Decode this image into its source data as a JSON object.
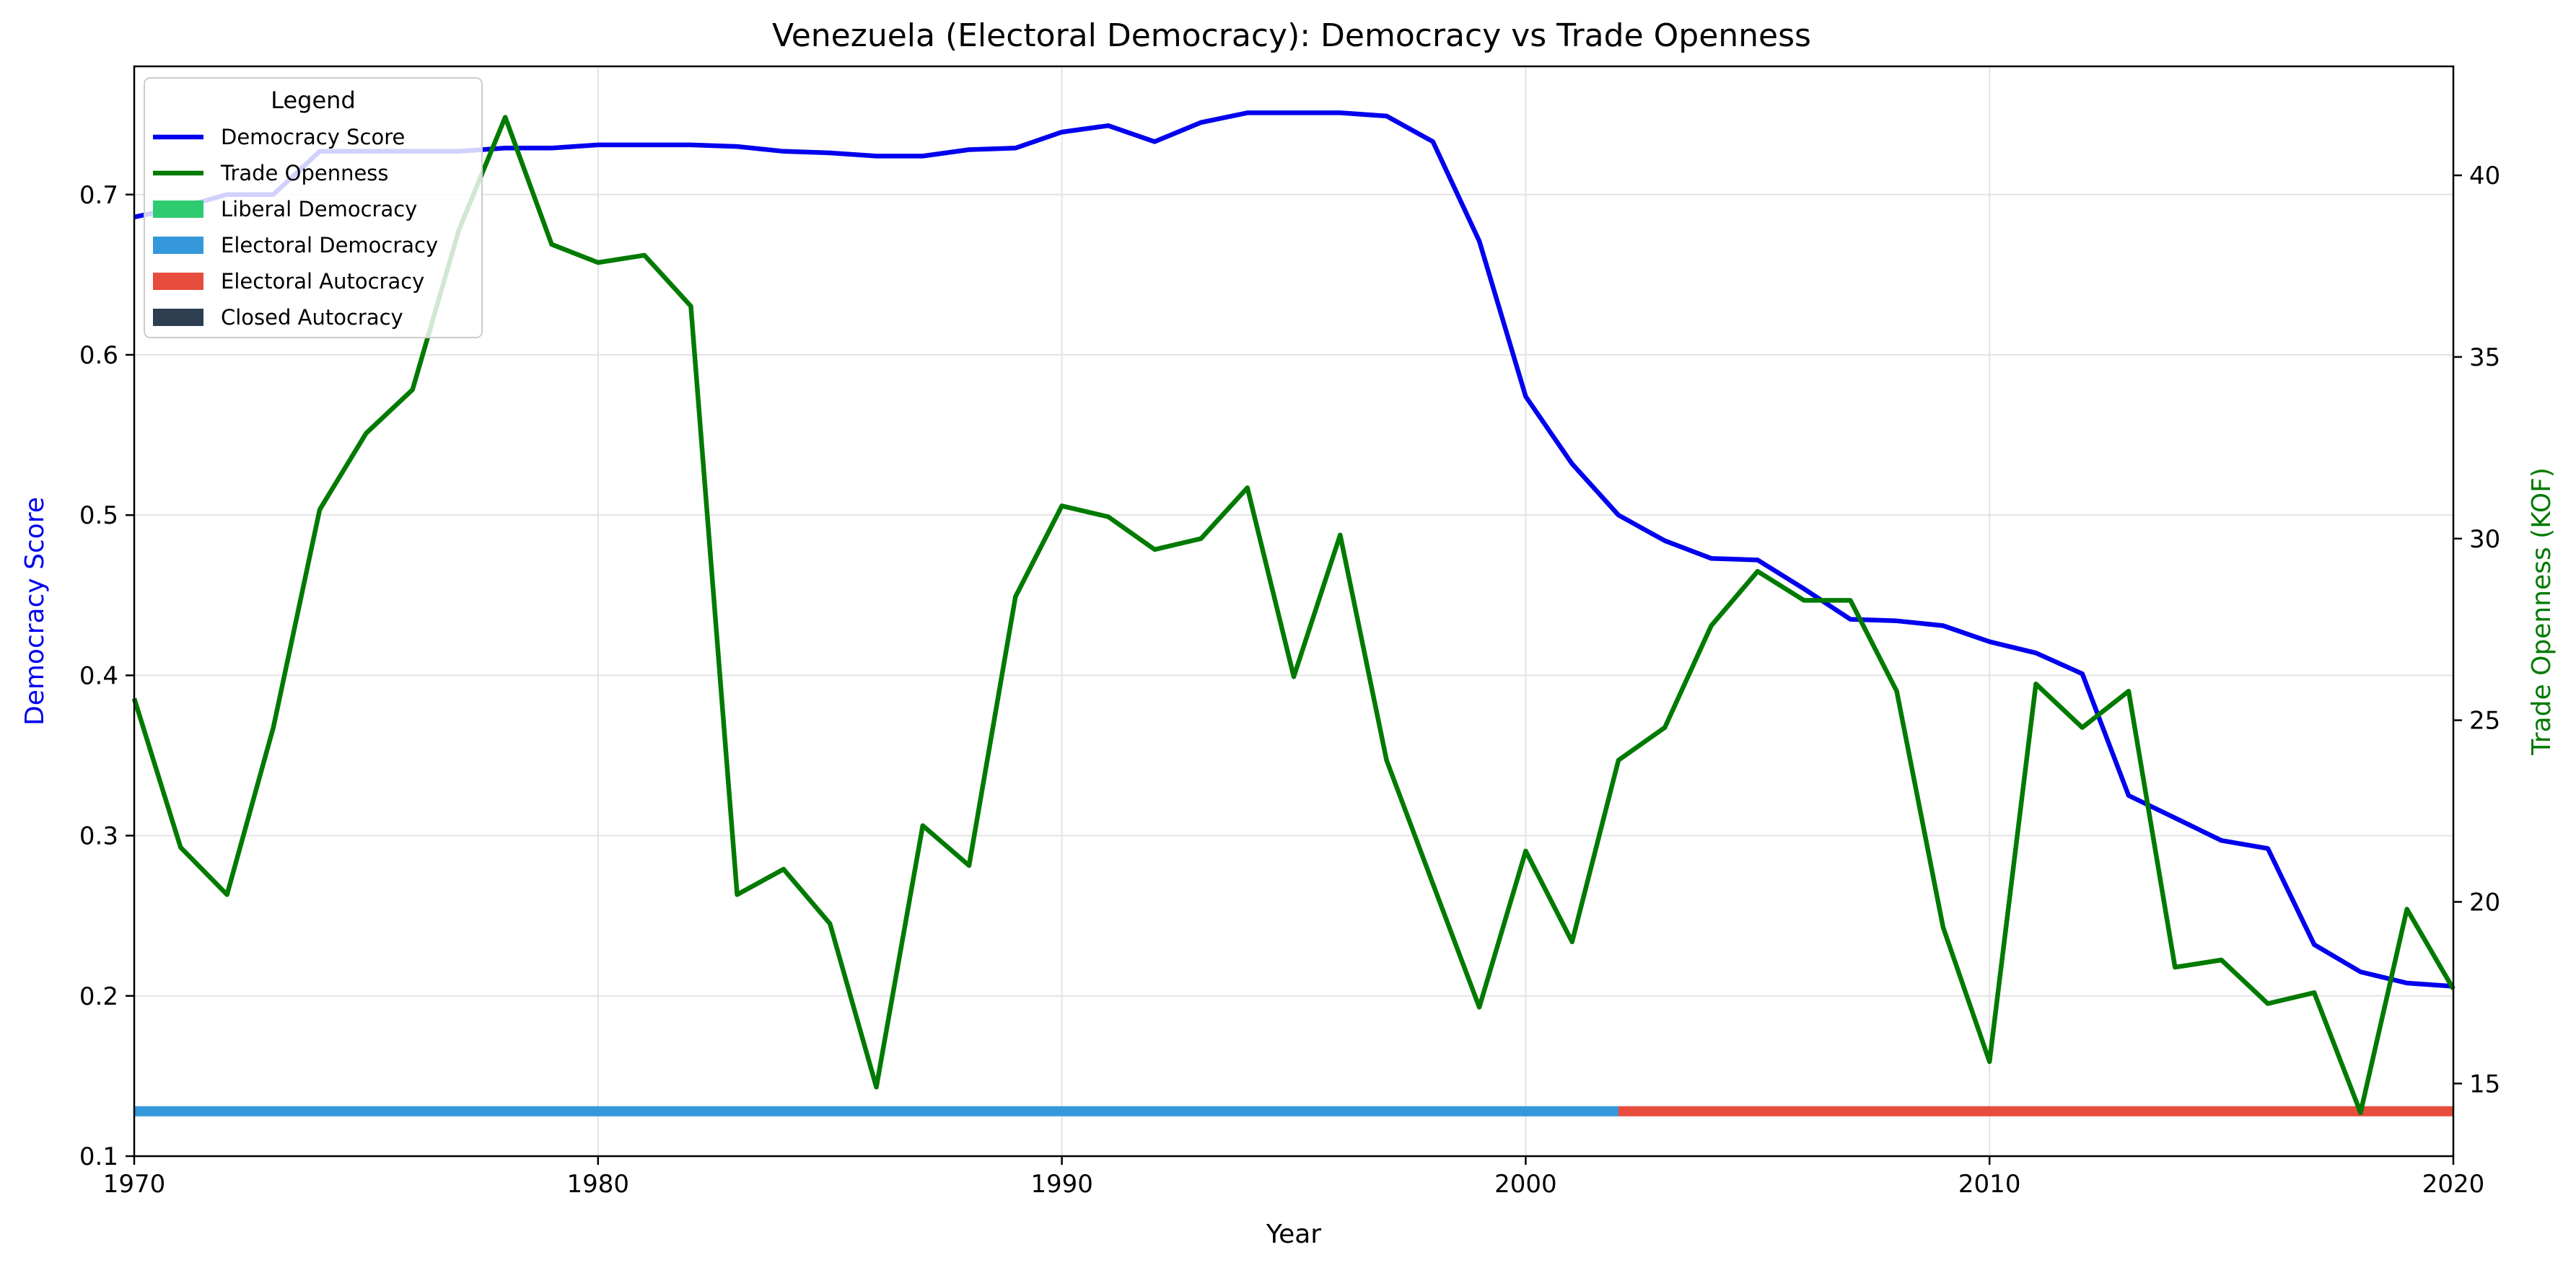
{
  "chart_data": {
    "type": "line",
    "title": "Venezuela (Electoral Democracy): Democracy vs Trade Openness",
    "xlabel": "Year",
    "ylabel_left": "Democracy Score",
    "ylabel_right": "Trade Openness (KOF)",
    "xlim": [
      1970,
      2020
    ],
    "ylim_left": [
      0.1,
      0.78
    ],
    "ylim_right": [
      13,
      43
    ],
    "x_ticks": [
      1970,
      1980,
      1990,
      2000,
      2010,
      2020
    ],
    "y_ticks_left": [
      0.1,
      0.2,
      0.3,
      0.4,
      0.5,
      0.6,
      0.7
    ],
    "y_ticks_right": [
      15,
      20,
      25,
      30,
      35,
      40
    ],
    "grid": true,
    "legend_position": "top-left",
    "legend_title": "Legend",
    "x": [
      1970,
      1971,
      1972,
      1973,
      1974,
      1975,
      1976,
      1977,
      1978,
      1979,
      1980,
      1981,
      1982,
      1983,
      1984,
      1985,
      1986,
      1987,
      1988,
      1989,
      1990,
      1991,
      1992,
      1993,
      1994,
      1995,
      1996,
      1997,
      1998,
      1999,
      2000,
      2001,
      2002,
      2003,
      2004,
      2005,
      2006,
      2007,
      2008,
      2009,
      2010,
      2011,
      2012,
      2013,
      2014,
      2015,
      2016,
      2017,
      2018,
      2019,
      2020
    ],
    "series": [
      {
        "name": "Democracy Score",
        "axis": "left",
        "color": "#0000ee",
        "values": [
          0.686,
          0.692,
          0.7,
          0.7,
          0.727,
          0.727,
          0.727,
          0.727,
          0.729,
          0.729,
          0.731,
          0.731,
          0.731,
          0.73,
          0.727,
          0.726,
          0.724,
          0.724,
          0.728,
          0.729,
          0.739,
          0.743,
          0.733,
          0.745,
          0.751,
          0.751,
          0.751,
          0.749,
          0.733,
          0.671,
          0.574,
          0.532,
          0.5,
          0.484,
          0.473,
          0.472,
          0.454,
          0.435,
          0.434,
          0.431,
          0.421,
          0.414,
          0.401,
          0.325,
          0.311,
          0.297,
          0.292,
          0.232,
          0.215,
          0.208,
          0.206
        ]
      },
      {
        "name": "Trade Openness",
        "axis": "right",
        "color": "#007a00",
        "values": [
          25.6,
          21.5,
          20.2,
          24.8,
          30.8,
          32.9,
          34.1,
          38.5,
          41.6,
          38.1,
          37.6,
          37.8,
          36.4,
          20.2,
          20.9,
          19.4,
          14.9,
          22.1,
          21.0,
          28.4,
          30.9,
          30.6,
          29.7,
          30.0,
          31.4,
          26.2,
          30.1,
          23.9,
          20.5,
          17.1,
          21.4,
          18.9,
          23.9,
          24.8,
          27.6,
          29.1,
          28.3,
          28.3,
          25.8,
          19.3,
          15.6,
          26.0,
          24.8,
          25.8,
          18.2,
          18.4,
          17.2,
          17.5,
          14.2,
          19.8,
          17.6
        ]
      }
    ],
    "regime_bands": [
      {
        "name": "Electoral Democracy",
        "start": 1970,
        "end": 2002,
        "color": "#3498db"
      },
      {
        "name": "Electoral Autocracy",
        "start": 2002,
        "end": 2020,
        "color": "#e74c3c"
      }
    ],
    "regime_band_level": 0.128,
    "legend": [
      {
        "label": "Democracy Score",
        "kind": "line",
        "color": "#0000ee"
      },
      {
        "label": "Trade Openness",
        "kind": "line",
        "color": "#007a00"
      },
      {
        "label": "Liberal Democracy",
        "kind": "patch",
        "color": "#2ecc71"
      },
      {
        "label": "Electoral Democracy",
        "kind": "patch",
        "color": "#3498db"
      },
      {
        "label": "Electoral Autocracy",
        "kind": "patch",
        "color": "#e74c3c"
      },
      {
        "label": "Closed Autocracy",
        "kind": "patch",
        "color": "#2c3e50"
      }
    ]
  }
}
